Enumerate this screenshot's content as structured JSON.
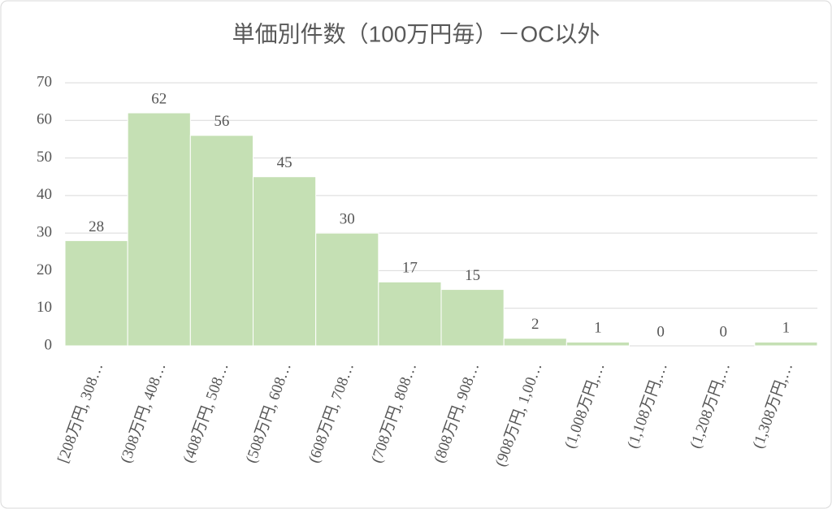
{
  "chart_data": {
    "type": "bar",
    "title": "単価別件数（100万円毎）－OC以外",
    "categories": [
      "[208万円, 308…",
      "(308万円, 408…",
      "(408万円, 508…",
      "(508万円, 608…",
      "(608万円, 708…",
      "(708万円, 808…",
      "(808万円, 908…",
      "(908万円, 1,00…",
      "(1,008万円,…",
      "(1,108万円,…",
      "(1,208万円,…",
      "(1,308万円,…"
    ],
    "values": [
      28,
      62,
      56,
      45,
      30,
      17,
      15,
      2,
      1,
      0,
      0,
      1
    ],
    "color": "#c5e0b4",
    "ylim": [
      0,
      70
    ],
    "yticks": [
      0,
      10,
      20,
      30,
      40,
      50,
      60,
      70
    ],
    "grid": true
  }
}
